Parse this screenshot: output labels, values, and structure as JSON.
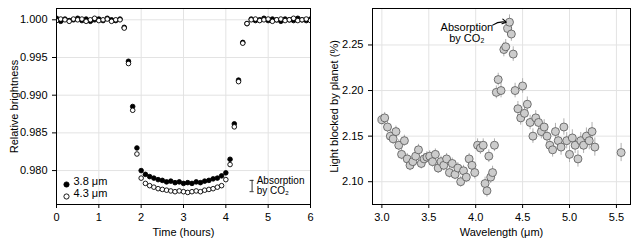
{
  "chart_data": [
    {
      "type": "scatter",
      "x_label": "Time (hours)",
      "y_label": "Relative brightness",
      "xlim": [
        0,
        6
      ],
      "ylim": [
        0.9755,
        1.0015
      ],
      "xticks": [
        0,
        1,
        2,
        3,
        4,
        5,
        6
      ],
      "yticks": [
        {
          "value": 0.98,
          "label": "0.980"
        },
        {
          "value": 0.985,
          "label": "0.985"
        },
        {
          "value": 0.99,
          "label": "0.990"
        },
        {
          "value": 0.995,
          "label": "0.995"
        },
        {
          "value": 1.0,
          "label": "1.000"
        }
      ],
      "grid": true,
      "legend": "lower left",
      "x": [
        0,
        0.1,
        0.2,
        0.3,
        0.4,
        0.5,
        0.6,
        0.7,
        0.8,
        0.9,
        1.0,
        1.1,
        1.2,
        1.3,
        1.4,
        1.5,
        1.6,
        1.7,
        1.8,
        1.9,
        2.0,
        2.1,
        2.2,
        2.3,
        2.4,
        2.5,
        2.6,
        2.7,
        2.8,
        2.9,
        3.0,
        3.1,
        3.2,
        3.3,
        3.4,
        3.5,
        3.6,
        3.7,
        3.8,
        3.9,
        4.0,
        4.1,
        4.2,
        4.3,
        4.4,
        4.5,
        4.6,
        4.7,
        4.8,
        4.9,
        5.0,
        5.1,
        5.2,
        5.3,
        5.4,
        5.5,
        5.6,
        5.7,
        5.8,
        5.9,
        6.0
      ],
      "series": [
        {
          "name": "3.8 μm",
          "color": "#000000",
          "marker": "circle",
          "values": [
            1.0002,
            0.9998,
            1.0001,
            0.9999,
            1.0,
            1.0002,
            0.9999,
            1.0001,
            0.9998,
            1.0,
            1.0001,
            0.9999,
            1.0002,
            1.0,
            0.9999,
            1.0001,
            0.999,
            0.9945,
            0.9885,
            0.983,
            0.98,
            0.9795,
            0.9792,
            0.979,
            0.9788,
            0.9787,
            0.9785,
            0.9786,
            0.9784,
            0.9785,
            0.9783,
            0.9784,
            0.9783,
            0.9785,
            0.9784,
            0.9786,
            0.9787,
            0.9789,
            0.979,
            0.9793,
            0.9797,
            0.9815,
            0.9862,
            0.992,
            0.997,
            0.9995,
            1.0001,
            0.9999,
            1.0,
            1.0002,
            0.9999,
            1.0001,
            1.0,
            0.9998,
            1.0001,
            1.0,
            0.9999,
            1.0002,
            1.0,
            0.9999,
            1.0001
          ]
        },
        {
          "name": "4.3 μm",
          "color": "#000000",
          "marker": "open circle",
          "values": [
            0.9999,
            1.0001,
            1.0,
            0.9998,
            1.0001,
            1.0,
            1.0001,
            0.9998,
            1.0,
            1.0002,
            0.9999,
            1.0,
            1.0001,
            0.9998,
            1.0,
            1.0,
            0.9989,
            0.9942,
            0.988,
            0.9822,
            0.979,
            0.9783,
            0.978,
            0.9778,
            0.9776,
            0.9775,
            0.9774,
            0.9773,
            0.9772,
            0.9773,
            0.9772,
            0.9771,
            0.9772,
            0.9773,
            0.9772,
            0.9774,
            0.9775,
            0.9776,
            0.9778,
            0.978,
            0.9788,
            0.9808,
            0.9858,
            0.9918,
            0.9969,
            0.9995,
            1.0,
            1.0001,
            0.9999,
            1.0,
            1.0001,
            0.9998,
            1.0,
            1.0001,
            0.9999,
            1.0,
            1.0002,
            0.9999,
            1.0,
            1.0001,
            0.9999
          ]
        }
      ],
      "annotations": [
        {
          "text": "Absorption by CO₂",
          "range": [
            0.9772,
            0.9787
          ]
        }
      ]
    },
    {
      "type": "scatter",
      "x_label": "Wavelength (μm)",
      "y_label": "Light blocked by planet (%)",
      "xlim": [
        2.9,
        5.65
      ],
      "ylim": [
        2.075,
        2.29
      ],
      "xticks": [
        {
          "value": 3.0,
          "label": "3.0"
        },
        {
          "value": 3.5,
          "label": "3.5"
        },
        {
          "value": 4.0,
          "label": "4.0"
        },
        {
          "value": 4.5,
          "label": "4.5"
        },
        {
          "value": 5.0,
          "label": "5.0"
        },
        {
          "value": 5.5,
          "label": "5.5"
        }
      ],
      "yticks": [
        {
          "value": 2.1,
          "label": "2.10"
        },
        {
          "value": 2.15,
          "label": "2.15"
        },
        {
          "value": 2.2,
          "label": "2.20"
        },
        {
          "value": 2.25,
          "label": "2.25"
        }
      ],
      "grid": true,
      "x": [
        3.0,
        3.03,
        3.06,
        3.09,
        3.12,
        3.15,
        3.18,
        3.21,
        3.24,
        3.27,
        3.3,
        3.33,
        3.36,
        3.39,
        3.42,
        3.45,
        3.48,
        3.51,
        3.54,
        3.57,
        3.6,
        3.63,
        3.66,
        3.69,
        3.72,
        3.75,
        3.78,
        3.81,
        3.84,
        3.87,
        3.9,
        3.93,
        3.96,
        3.99,
        4.02,
        4.05,
        4.08,
        4.1,
        4.12,
        4.14,
        4.16,
        4.18,
        4.2,
        4.22,
        4.24,
        4.27,
        4.3,
        4.32,
        4.34,
        4.36,
        4.38,
        4.4,
        4.42,
        4.45,
        4.48,
        4.5,
        4.52,
        4.55,
        4.58,
        4.61,
        4.64,
        4.67,
        4.7,
        4.73,
        4.76,
        4.79,
        4.82,
        4.85,
        4.88,
        4.91,
        4.94,
        4.97,
        5.0,
        5.03,
        5.06,
        5.09,
        5.12,
        5.15,
        5.18,
        5.21,
        5.24,
        5.27,
        5.55
      ],
      "series": [
        {
          "color": "#cccccc",
          "marker": "circle",
          "values": [
            2.168,
            2.17,
            2.16,
            2.15,
            2.147,
            2.155,
            2.14,
            2.13,
            2.145,
            2.125,
            2.118,
            2.122,
            2.128,
            2.135,
            2.12,
            2.125,
            2.127,
            2.128,
            2.122,
            2.13,
            2.115,
            2.122,
            2.118,
            2.125,
            2.11,
            2.12,
            2.108,
            2.115,
            2.1,
            2.112,
            2.105,
            2.125,
            2.118,
            2.11,
            2.14,
            2.137,
            2.14,
            2.098,
            2.09,
            2.128,
            2.105,
            2.11,
            2.14,
            2.198,
            2.212,
            2.2,
            2.245,
            2.248,
            2.268,
            2.275,
            2.262,
            2.24,
            2.2,
            2.18,
            2.17,
            2.205,
            2.175,
            2.185,
            2.165,
            2.15,
            2.17,
            2.165,
            2.155,
            2.16,
            2.15,
            2.14,
            2.135,
            2.155,
            2.145,
            2.138,
            2.16,
            2.145,
            2.13,
            2.148,
            2.14,
            2.125,
            2.145,
            2.14,
            2.15,
            2.145,
            2.155,
            2.138,
            2.132
          ],
          "errors": [
            0.006,
            0.006,
            0.006,
            0.006,
            0.006,
            0.006,
            0.006,
            0.006,
            0.006,
            0.006,
            0.006,
            0.006,
            0.006,
            0.006,
            0.006,
            0.006,
            0.006,
            0.006,
            0.006,
            0.006,
            0.006,
            0.006,
            0.006,
            0.006,
            0.006,
            0.006,
            0.006,
            0.006,
            0.006,
            0.006,
            0.006,
            0.006,
            0.006,
            0.007,
            0.007,
            0.007,
            0.007,
            0.007,
            0.007,
            0.007,
            0.007,
            0.007,
            0.007,
            0.007,
            0.007,
            0.008,
            0.008,
            0.008,
            0.008,
            0.008,
            0.008,
            0.008,
            0.008,
            0.008,
            0.008,
            0.008,
            0.008,
            0.008,
            0.008,
            0.008,
            0.008,
            0.008,
            0.008,
            0.008,
            0.008,
            0.008,
            0.008,
            0.009,
            0.009,
            0.009,
            0.009,
            0.009,
            0.009,
            0.009,
            0.009,
            0.009,
            0.009,
            0.009,
            0.009,
            0.01,
            0.01,
            0.01,
            0.01
          ]
        }
      ],
      "annotations": [
        {
          "text": "Absorption by CO₂"
        }
      ]
    }
  ]
}
